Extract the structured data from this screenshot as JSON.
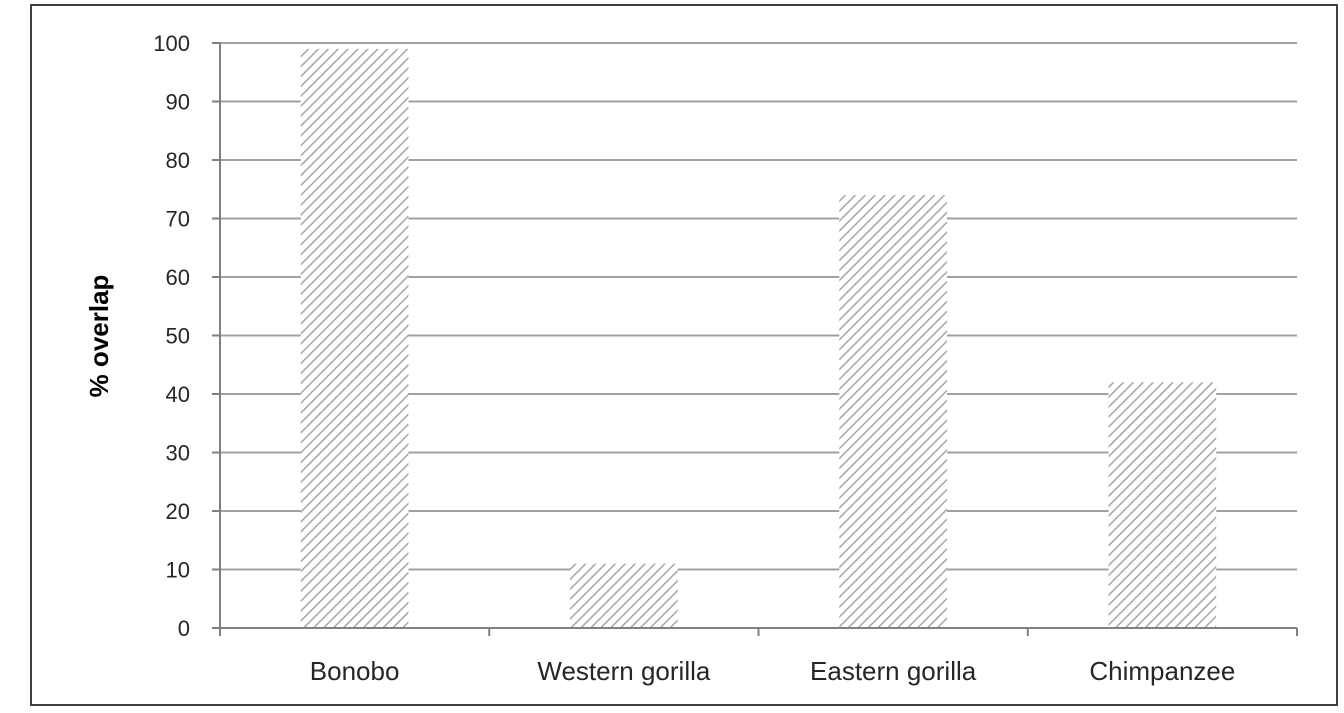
{
  "chart_data": {
    "type": "bar",
    "categories": [
      "Bonobo",
      "Western gorilla",
      "Eastern gorilla",
      "Chimpanzee"
    ],
    "values": [
      99,
      11,
      74,
      42
    ],
    "title": "",
    "xlabel": "",
    "ylabel": "% overlap",
    "ylim": [
      0,
      100
    ],
    "yticks": [
      0,
      10,
      20,
      30,
      40,
      50,
      60,
      70,
      80,
      90,
      100
    ],
    "grid": true,
    "legend": "none",
    "bar_fill": "hatched",
    "colors": {
      "bar_hatch": "#a6a6a6",
      "bar_background": "#ffffff",
      "gridline": "#a0a0a0",
      "frame": "#404040",
      "axis": "#808080"
    }
  }
}
